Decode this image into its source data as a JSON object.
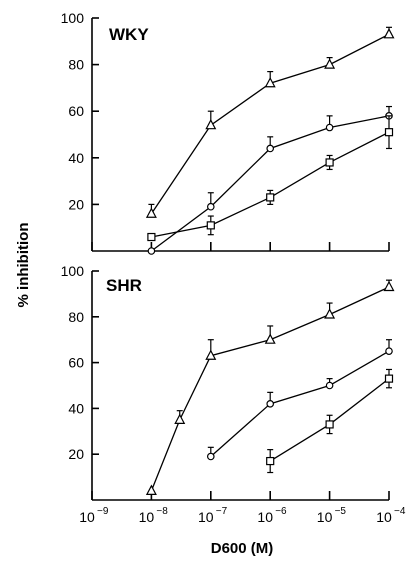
{
  "chart_data": [
    {
      "type": "line",
      "panel_label": "WKY",
      "xscale": "log",
      "xlim": [
        1e-09,
        0.0001
      ],
      "ylim": [
        0,
        100
      ],
      "yticks": [
        20,
        40,
        60,
        80,
        100
      ],
      "ylabel": "% inhibition",
      "xlabel": "",
      "series": [
        {
          "marker": "triangle",
          "x": [
            1e-08,
            1e-07,
            1e-06,
            1e-05,
            0.0001
          ],
          "y": [
            16,
            54,
            72,
            80,
            93
          ],
          "err": [
            4,
            6,
            5,
            3,
            3
          ]
        },
        {
          "marker": "circle",
          "x": [
            1e-08,
            1e-07,
            1e-06,
            1e-05,
            0.0001
          ],
          "y": [
            0,
            19,
            44,
            53,
            58
          ],
          "err": [
            0,
            6,
            5,
            5,
            4
          ]
        },
        {
          "marker": "square",
          "x": [
            1e-08,
            1e-07,
            1e-06,
            1e-05,
            0.0001
          ],
          "y": [
            6,
            11,
            23,
            38,
            51
          ],
          "err": [
            0,
            4,
            3,
            3,
            7
          ]
        }
      ]
    },
    {
      "type": "line",
      "panel_label": "SHR",
      "xscale": "log",
      "xlim": [
        1e-09,
        0.0001
      ],
      "ylim": [
        0,
        100
      ],
      "yticks": [
        20,
        40,
        60,
        80,
        100
      ],
      "xticks": [
        {
          "base": "10",
          "exp": "−9",
          "value": 1e-09
        },
        {
          "base": "10",
          "exp": "−8",
          "value": 1e-08
        },
        {
          "base": "10",
          "exp": "−7",
          "value": 1e-07
        },
        {
          "base": "10",
          "exp": "−6",
          "value": 1e-06
        },
        {
          "base": "10",
          "exp": "−5",
          "value": 1e-05
        },
        {
          "base": "10",
          "exp": "−4",
          "value": 0.0001
        }
      ],
      "xlabel": "D600 (M)",
      "ylabel": "",
      "series": [
        {
          "marker": "triangle",
          "x": [
            1e-08,
            3e-08,
            1e-07,
            1e-06,
            1e-05,
            0.0001
          ],
          "y": [
            4,
            35,
            63,
            70,
            81,
            93
          ],
          "err": [
            0,
            4,
            7,
            6,
            5,
            3
          ]
        },
        {
          "marker": "circle",
          "x": [
            1e-07,
            1e-06,
            1e-05,
            0.0001
          ],
          "y": [
            19,
            42,
            50,
            65
          ],
          "err": [
            4,
            5,
            3,
            5
          ]
        },
        {
          "marker": "square",
          "x": [
            1e-06,
            1e-05,
            0.0001
          ],
          "y": [
            17,
            33,
            53
          ],
          "err": [
            5,
            4,
            4
          ]
        }
      ]
    }
  ]
}
